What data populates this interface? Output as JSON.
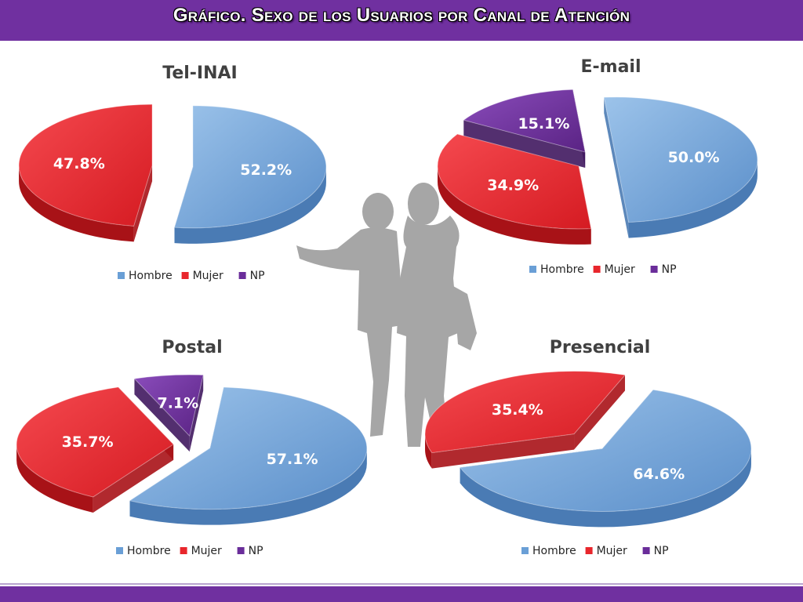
{
  "header": {
    "title": "Gráfico. Sexo de los Usuarios por Canal de Atención"
  },
  "colors": {
    "hombre": "#6a9fd6",
    "mujer": "#e8262c",
    "np": "#6a2d9a",
    "band": "#7030a0"
  },
  "legend": [
    "Hombre",
    "Mujer",
    "NP"
  ],
  "chart_data": [
    {
      "type": "pie",
      "title": "Tel-INAI",
      "slices": [
        {
          "name": "Hombre",
          "value": 52.2,
          "label": "52.2%"
        },
        {
          "name": "Mujer",
          "value": 47.8,
          "label": "47.8%"
        }
      ]
    },
    {
      "type": "pie",
      "title": "E-mail",
      "slices": [
        {
          "name": "Hombre",
          "value": 50.0,
          "label": "50.0%"
        },
        {
          "name": "Mujer",
          "value": 34.9,
          "label": "34.9%"
        },
        {
          "name": "NP",
          "value": 15.1,
          "label": "15.1%"
        }
      ]
    },
    {
      "type": "pie",
      "title": "Postal",
      "slices": [
        {
          "name": "Hombre",
          "value": 57.1,
          "label": "57.1%"
        },
        {
          "name": "Mujer",
          "value": 35.7,
          "label": "35.7%"
        },
        {
          "name": "NP",
          "value": 7.1,
          "label": "7.1%"
        }
      ]
    },
    {
      "type": "pie",
      "title": "Presencial",
      "slices": [
        {
          "name": "Hombre",
          "value": 64.6,
          "label": "64.6%"
        },
        {
          "name": "Mujer",
          "value": 35.4,
          "label": "35.4%"
        }
      ]
    }
  ]
}
